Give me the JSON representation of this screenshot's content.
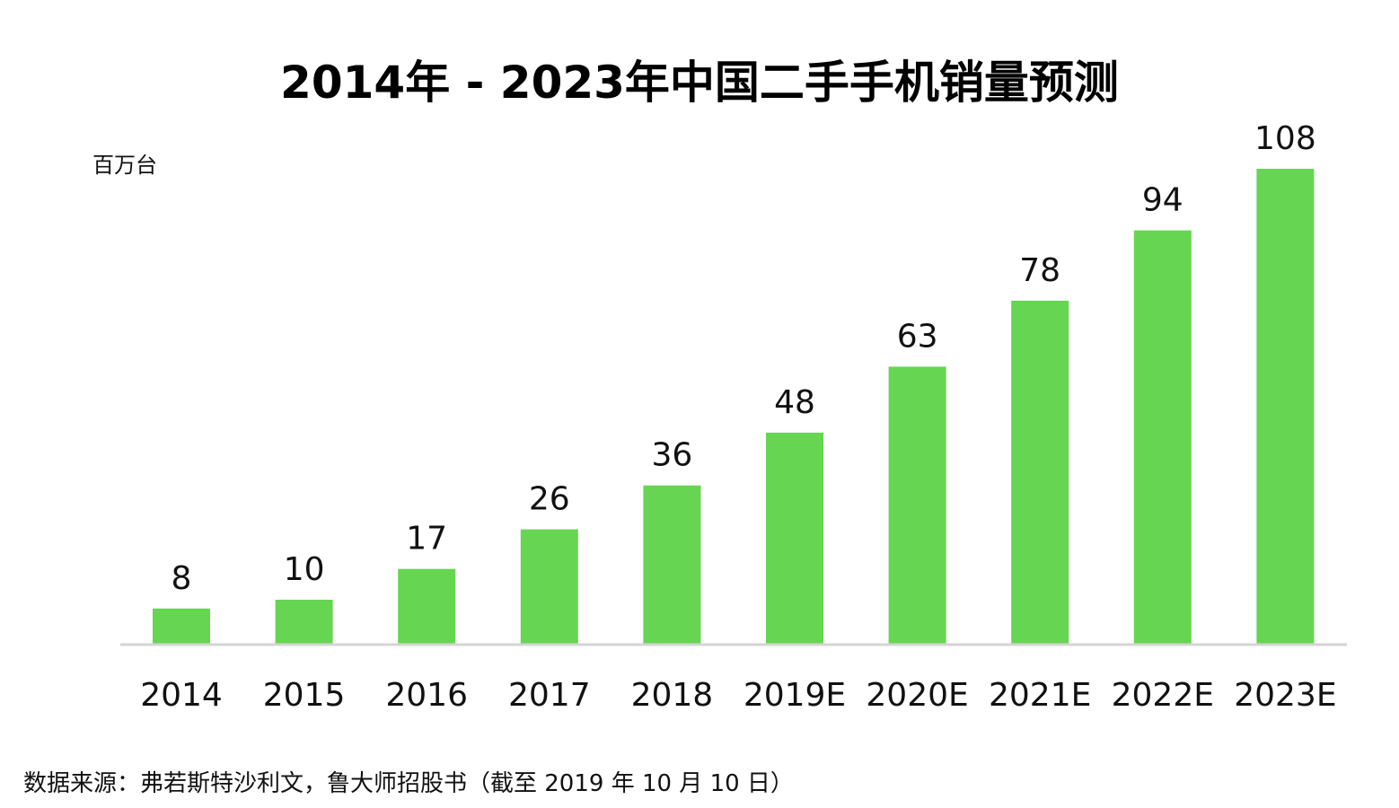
{
  "chart_data": {
    "type": "bar",
    "title": "2014年 -  2023年中国二手手机销量预测",
    "unit_label": "百万台",
    "categories": [
      "2014",
      "2015",
      "2016",
      "2017",
      "2018",
      "2019E",
      "2020E",
      "2021E",
      "2022E",
      "2023E"
    ],
    "values": [
      8,
      10,
      17,
      26,
      36,
      48,
      63,
      78,
      94,
      108
    ],
    "xlabel": "",
    "ylabel": "",
    "ylim": [
      0,
      108
    ],
    "grid": false,
    "legend": "none",
    "bar_color": "#66d552",
    "axis_color": "#d4d4d4"
  },
  "footer": {
    "source": "数据来源：弗若斯特沙利文，鲁大师招股书（截至 2019 年 10 月 10 日）"
  }
}
